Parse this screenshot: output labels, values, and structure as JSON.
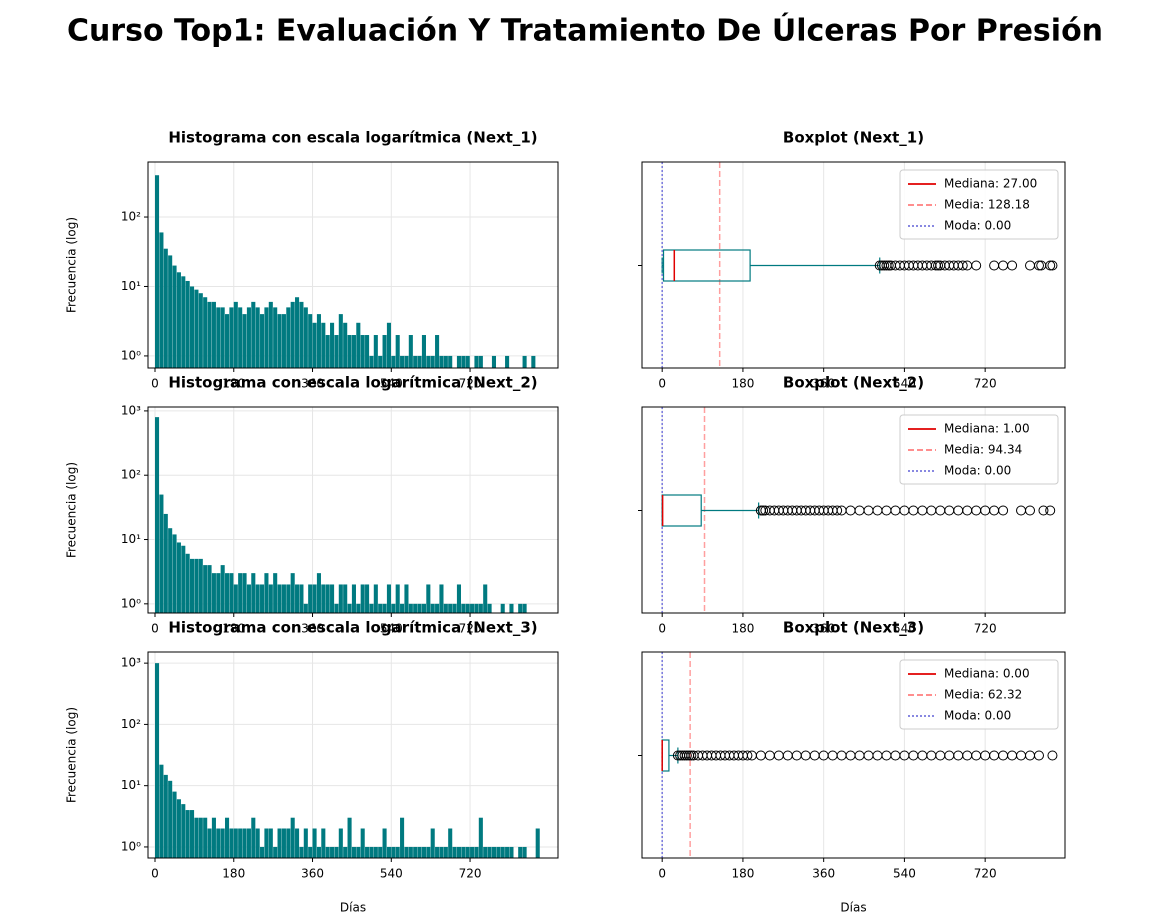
{
  "title": "Curso Top1: Evaluación Y Tratamiento De Úlceras Por Presión",
  "chart_data": [
    {
      "type": "histogram",
      "title": "Histograma con escala logarítmica (Next_1)",
      "ylabel": "Frecuencia (log)",
      "color": "#007a80",
      "log_scale": true,
      "grid": true,
      "bins": [
        0,
        10,
        20,
        30,
        40,
        50,
        60,
        70,
        80,
        90,
        100,
        110,
        120,
        130,
        140,
        150,
        160,
        170,
        180,
        190,
        200,
        210,
        220,
        230,
        240,
        250,
        260,
        270,
        280,
        290,
        300,
        310,
        320,
        330,
        340,
        350,
        360,
        370,
        380,
        390,
        400,
        410,
        420,
        430,
        440,
        450,
        460,
        470,
        480,
        490,
        500,
        510,
        520,
        530,
        540,
        550,
        560,
        570,
        580,
        590,
        600,
        610,
        620,
        630,
        640,
        650,
        660,
        670,
        680,
        690,
        700,
        710,
        720,
        730,
        740,
        750,
        760,
        770,
        780,
        790,
        800,
        810,
        820,
        830,
        840,
        850,
        860,
        870,
        880
      ],
      "values": [
        400,
        60,
        35,
        28,
        20,
        16,
        14,
        12,
        10,
        9,
        8,
        7,
        6,
        6,
        5,
        5,
        4,
        5,
        6,
        5,
        4,
        5,
        6,
        5,
        4,
        5,
        6,
        5,
        4,
        4,
        5,
        6,
        7,
        6,
        5,
        4,
        3,
        4,
        3,
        2,
        3,
        2,
        4,
        3,
        2,
        2,
        3,
        2,
        2,
        1,
        2,
        1,
        2,
        3,
        1,
        2,
        1,
        1,
        2,
        1,
        1,
        2,
        1,
        1,
        2,
        1,
        1,
        1,
        0,
        1,
        1,
        1,
        0,
        1,
        1,
        0,
        0,
        1,
        0,
        0,
        1,
        0,
        0,
        0,
        1,
        0,
        1,
        0
      ],
      "xlim": [
        -16,
        921
      ],
      "xticks": [
        0,
        180,
        360,
        540,
        720
      ],
      "ylim": [
        0.67,
        620
      ],
      "yticks": [
        {
          "value": 1,
          "label": "10⁰"
        },
        {
          "value": 10,
          "label": "10¹"
        },
        {
          "value": 100,
          "label": "10²"
        }
      ]
    },
    {
      "type": "boxplot",
      "title": "Boxplot (Next_1)",
      "color": "#007a80",
      "grid": true,
      "q1": 3,
      "median": 27,
      "q3": 196,
      "whisker_low": 0,
      "whisker_high": 485,
      "mean": 128.18,
      "mode": 0,
      "outliers": [
        485,
        490,
        495,
        500,
        505,
        510,
        520,
        530,
        540,
        550,
        560,
        570,
        580,
        590,
        600,
        610,
        615,
        620,
        630,
        640,
        650,
        660,
        670,
        680,
        700,
        740,
        760,
        780,
        820,
        840,
        845,
        865,
        870
      ],
      "legend": [
        {
          "name": "Mediana: 27.00",
          "color": "#e00000",
          "style": "solid"
        },
        {
          "name": "Media: 128.18",
          "color": "#ff7f7f",
          "style": "dashed"
        },
        {
          "name": "Moda: 0.00",
          "color": "#7777dd",
          "style": "dotted"
        }
      ],
      "xlim": [
        -45,
        898
      ],
      "xticks": [
        0,
        180,
        360,
        540,
        720
      ]
    },
    {
      "type": "histogram",
      "title": "Histograma con escala logarítmica (Next_2)",
      "ylabel": "Frecuencia (log)",
      "color": "#007a80",
      "log_scale": true,
      "grid": true,
      "bins": [
        0,
        10,
        20,
        30,
        40,
        50,
        60,
        70,
        80,
        90,
        100,
        110,
        120,
        130,
        140,
        150,
        160,
        170,
        180,
        190,
        200,
        210,
        220,
        230,
        240,
        250,
        260,
        270,
        280,
        290,
        300,
        310,
        320,
        330,
        340,
        350,
        360,
        370,
        380,
        390,
        400,
        410,
        420,
        430,
        440,
        450,
        460,
        470,
        480,
        490,
        500,
        510,
        520,
        530,
        540,
        550,
        560,
        570,
        580,
        590,
        600,
        610,
        620,
        630,
        640,
        650,
        660,
        670,
        680,
        690,
        700,
        710,
        720,
        730,
        740,
        750,
        760,
        770,
        780,
        790,
        800,
        810,
        820,
        830,
        840,
        850,
        860,
        870,
        880
      ],
      "values": [
        800,
        50,
        25,
        15,
        12,
        9,
        8,
        6,
        5,
        5,
        5,
        4,
        4,
        3,
        3,
        4,
        3,
        3,
        2,
        3,
        3,
        2,
        3,
        2,
        2,
        3,
        2,
        3,
        2,
        2,
        2,
        3,
        2,
        2,
        1,
        2,
        2,
        3,
        2,
        2,
        2,
        1,
        2,
        2,
        1,
        2,
        1,
        2,
        2,
        1,
        2,
        1,
        1,
        2,
        1,
        2,
        1,
        2,
        1,
        1,
        1,
        1,
        2,
        1,
        1,
        2,
        1,
        1,
        1,
        2,
        1,
        1,
        1,
        1,
        1,
        2,
        1,
        0,
        0,
        1,
        0,
        1,
        0,
        1,
        1,
        0,
        0,
        0
      ],
      "xlim": [
        -16,
        921
      ],
      "xticks": [
        0,
        180,
        360,
        540,
        720
      ],
      "ylim": [
        0.72,
        1150
      ],
      "yticks": [
        {
          "value": 1,
          "label": "10⁰"
        },
        {
          "value": 10,
          "label": "10¹"
        },
        {
          "value": 100,
          "label": "10²"
        },
        {
          "value": 1000,
          "label": "10³"
        }
      ]
    },
    {
      "type": "boxplot",
      "title": "Boxplot (Next_2)",
      "color": "#007a80",
      "grid": true,
      "q1": 0,
      "median": 1,
      "q3": 87,
      "whisker_low": 0,
      "whisker_high": 215,
      "mean": 94.34,
      "mode": 0,
      "outliers": [
        220,
        225,
        230,
        240,
        250,
        260,
        270,
        280,
        290,
        300,
        310,
        320,
        330,
        340,
        350,
        360,
        370,
        380,
        390,
        400,
        420,
        440,
        460,
        480,
        500,
        520,
        540,
        560,
        580,
        600,
        620,
        640,
        660,
        680,
        700,
        720,
        740,
        760,
        800,
        820,
        850,
        865
      ],
      "legend": [
        {
          "name": "Mediana: 1.00",
          "color": "#e00000",
          "style": "solid"
        },
        {
          "name": "Media: 94.34",
          "color": "#ff7f7f",
          "style": "dashed"
        },
        {
          "name": "Moda: 0.00",
          "color": "#7777dd",
          "style": "dotted"
        }
      ],
      "xlim": [
        -45,
        898
      ],
      "xticks": [
        0,
        180,
        360,
        540,
        720
      ]
    },
    {
      "type": "histogram",
      "title": "Histograma con escala logarítmica (Next_3)",
      "ylabel": "Frecuencia (log)",
      "xlabel": "Días",
      "color": "#007a80",
      "log_scale": true,
      "grid": true,
      "bins": [
        0,
        10,
        20,
        30,
        40,
        50,
        60,
        70,
        80,
        90,
        100,
        110,
        120,
        130,
        140,
        150,
        160,
        170,
        180,
        190,
        200,
        210,
        220,
        230,
        240,
        250,
        260,
        270,
        280,
        290,
        300,
        310,
        320,
        330,
        340,
        350,
        360,
        370,
        380,
        390,
        400,
        410,
        420,
        430,
        440,
        450,
        460,
        470,
        480,
        490,
        500,
        510,
        520,
        530,
        540,
        550,
        560,
        570,
        580,
        590,
        600,
        610,
        620,
        630,
        640,
        650,
        660,
        670,
        680,
        690,
        700,
        710,
        720,
        730,
        740,
        750,
        760,
        770,
        780,
        790,
        800,
        810,
        820,
        830,
        840,
        850,
        860,
        870,
        880
      ],
      "values": [
        1000,
        22,
        15,
        12,
        8,
        6,
        5,
        4,
        4,
        3,
        3,
        3,
        2,
        3,
        2,
        2,
        3,
        2,
        2,
        2,
        2,
        2,
        3,
        2,
        1,
        2,
        2,
        1,
        2,
        2,
        2,
        3,
        2,
        1,
        2,
        1,
        2,
        1,
        2,
        1,
        1,
        1,
        2,
        1,
        3,
        1,
        1,
        2,
        1,
        1,
        1,
        1,
        2,
        1,
        1,
        1,
        3,
        1,
        1,
        1,
        1,
        1,
        1,
        2,
        1,
        1,
        1,
        2,
        1,
        1,
        1,
        1,
        1,
        1,
        3,
        1,
        1,
        1,
        1,
        1,
        1,
        1,
        0,
        1,
        1,
        0,
        0,
        2
      ],
      "xlim": [
        -16,
        921
      ],
      "xticks": [
        0,
        180,
        360,
        540,
        720
      ],
      "ylim": [
        0.66,
        1520
      ],
      "yticks": [
        {
          "value": 1,
          "label": "10⁰"
        },
        {
          "value": 10,
          "label": "10¹"
        },
        {
          "value": 100,
          "label": "10²"
        },
        {
          "value": 1000,
          "label": "10³"
        }
      ]
    },
    {
      "type": "boxplot",
      "title": "Boxplot (Next_3)",
      "xlabel": "Días",
      "color": "#007a80",
      "grid": true,
      "q1": 0,
      "median": 0,
      "q3": 15,
      "whisker_low": 0,
      "whisker_high": 35,
      "mean": 62.32,
      "mode": 0,
      "outliers": [
        35,
        40,
        45,
        50,
        55,
        60,
        65,
        70,
        80,
        90,
        100,
        110,
        120,
        130,
        140,
        150,
        160,
        170,
        180,
        190,
        200,
        220,
        240,
        260,
        280,
        300,
        320,
        340,
        360,
        380,
        400,
        420,
        440,
        460,
        480,
        500,
        520,
        540,
        560,
        580,
        600,
        620,
        640,
        660,
        680,
        700,
        720,
        740,
        760,
        780,
        800,
        820,
        840,
        870
      ],
      "legend": [
        {
          "name": "Mediana: 0.00",
          "color": "#e00000",
          "style": "solid"
        },
        {
          "name": "Media: 62.32",
          "color": "#ff7f7f",
          "style": "dashed"
        },
        {
          "name": "Moda: 0.00",
          "color": "#7777dd",
          "style": "dotted"
        }
      ],
      "xlim": [
        -45,
        898
      ],
      "xticks": [
        0,
        180,
        360,
        540,
        720
      ]
    }
  ]
}
